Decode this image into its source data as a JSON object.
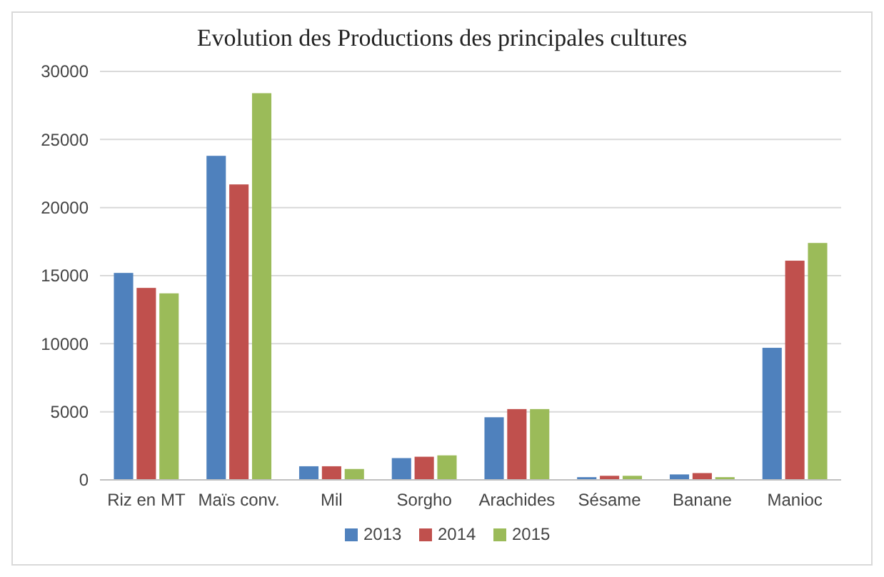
{
  "chart_data": {
    "type": "bar",
    "title": "Evolution des Productions des principales cultures",
    "categories": [
      "Riz en MT",
      "Maïs conv.",
      "Mil",
      "Sorgho",
      "Arachides",
      "Sésame",
      "Banane",
      "Manioc"
    ],
    "series": [
      {
        "name": "2013",
        "color": "#4f81bd",
        "values": [
          15200,
          23800,
          1000,
          1600,
          4600,
          200,
          400,
          9700
        ]
      },
      {
        "name": "2014",
        "color": "#c0504d",
        "values": [
          14100,
          21700,
          1000,
          1700,
          5200,
          300,
          500,
          16100
        ]
      },
      {
        "name": "2015",
        "color": "#9bbb59",
        "values": [
          13700,
          28400,
          800,
          1800,
          5200,
          300,
          200,
          17400
        ]
      }
    ],
    "ylim": [
      0,
      30000
    ],
    "yticks": [
      0,
      5000,
      10000,
      15000,
      20000,
      25000,
      30000
    ],
    "grid": "y",
    "legend": "bottom"
  }
}
